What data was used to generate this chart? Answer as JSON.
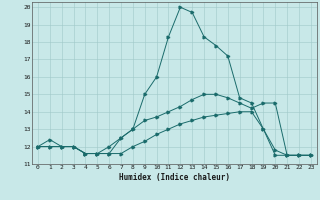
{
  "xlabel": "Humidex (Indice chaleur)",
  "xlim": [
    -0.5,
    23.5
  ],
  "ylim": [
    11,
    20.3
  ],
  "yticks": [
    11,
    12,
    13,
    14,
    15,
    16,
    17,
    18,
    19,
    20
  ],
  "xticks": [
    0,
    1,
    2,
    3,
    4,
    5,
    6,
    7,
    8,
    9,
    10,
    11,
    12,
    13,
    14,
    15,
    16,
    17,
    18,
    19,
    20,
    21,
    22,
    23
  ],
  "background_color": "#c8e8e8",
  "grid_color": "#a0c8c8",
  "line_color": "#1a6b6b",
  "series": [
    {
      "x": [
        0,
        1,
        2,
        3,
        4,
        5,
        6,
        7,
        8,
        9,
        10,
        11,
        12,
        13,
        14,
        15,
        16,
        17,
        18,
        19,
        20,
        21,
        22,
        23
      ],
      "y": [
        12,
        12.4,
        12,
        12,
        11.6,
        11.6,
        11.6,
        12.5,
        13,
        15,
        16,
        18.3,
        20,
        19.7,
        18.3,
        17.8,
        17.2,
        14.8,
        14.5,
        13,
        11.8,
        11.5,
        11.5,
        11.5
      ],
      "style": "-",
      "marker": ">"
    },
    {
      "x": [
        0,
        1,
        2,
        3,
        4,
        5,
        6,
        7,
        8,
        9,
        10,
        11,
        12,
        13,
        14,
        15,
        16,
        17,
        18,
        19,
        20,
        21,
        22,
        23
      ],
      "y": [
        12,
        12,
        12,
        12,
        11.6,
        11.6,
        12,
        12.5,
        13,
        13.5,
        13.7,
        14,
        14.3,
        14.7,
        15,
        15,
        14.8,
        14.5,
        14.2,
        14.5,
        14.5,
        11.5,
        11.5,
        11.5
      ],
      "style": "-",
      "marker": ">"
    },
    {
      "x": [
        0,
        1,
        2,
        3,
        4,
        5,
        6,
        7,
        8,
        9,
        10,
        11,
        12,
        13,
        14,
        15,
        16,
        17,
        18,
        19,
        20,
        21,
        22,
        23
      ],
      "y": [
        12,
        12,
        12,
        12,
        11.6,
        11.6,
        11.6,
        11.6,
        12,
        12.3,
        12.7,
        13,
        13.3,
        13.5,
        13.7,
        13.8,
        13.9,
        14,
        14,
        13,
        11.5,
        11.5,
        11.5,
        11.5
      ],
      "style": "-",
      "marker": ">"
    }
  ]
}
